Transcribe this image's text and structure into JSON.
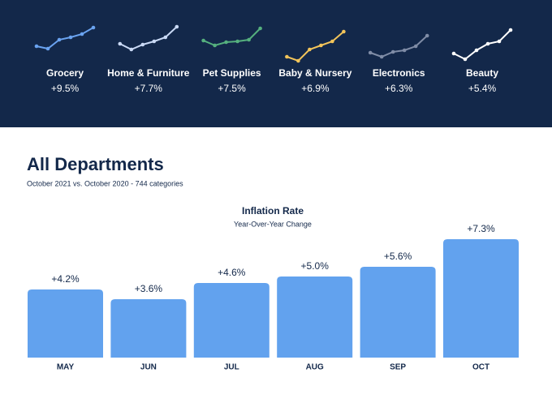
{
  "page": {
    "title": "All Departments",
    "subtitle": "October 2021 vs. October 2020 - 744 categories"
  },
  "chart_data": [
    {
      "type": "sparkline",
      "title": "Grocery",
      "subtitle": "+9.5%",
      "color": "#6aa3f0",
      "values": [
        23,
        20,
        31,
        34,
        38,
        46
      ],
      "ylim": [
        0,
        50
      ]
    },
    {
      "type": "sparkline",
      "title": "Home & Furniture",
      "subtitle": "+7.7%",
      "color": "#c9d9f5",
      "values": [
        26,
        19,
        25,
        29,
        34,
        47
      ],
      "ylim": [
        0,
        50
      ]
    },
    {
      "type": "sparkline",
      "title": "Pet Supplies",
      "subtitle": "+7.5%",
      "color": "#55b07e",
      "values": [
        30,
        24,
        28,
        29,
        31,
        45
      ],
      "ylim": [
        0,
        50
      ]
    },
    {
      "type": "sparkline",
      "title": "Baby & Nursery",
      "subtitle": "+6.9%",
      "color": "#f2c45a",
      "values": [
        10,
        5,
        19,
        24,
        29,
        41
      ],
      "ylim": [
        0,
        50
      ]
    },
    {
      "type": "sparkline",
      "title": "Electronics",
      "subtitle": "+6.3%",
      "color": "#7f8ca6",
      "values": [
        15,
        10,
        16,
        18,
        23,
        36
      ],
      "ylim": [
        0,
        50
      ]
    },
    {
      "type": "sparkline",
      "title": "Beauty",
      "subtitle": "+5.4%",
      "color": "#ffffff",
      "values": [
        14,
        7,
        18,
        26,
        29,
        43
      ],
      "ylim": [
        0,
        50
      ]
    },
    {
      "type": "bar",
      "title": "Inflation Rate",
      "subtitle": "Year-Over-Year Change",
      "color": "#62a2ee",
      "categories": [
        "MAY",
        "JUN",
        "JUL",
        "AUG",
        "SEP",
        "OCT"
      ],
      "values": [
        4.2,
        3.6,
        4.6,
        5.0,
        5.6,
        7.3
      ],
      "value_labels": [
        "+4.2%",
        "+3.6%",
        "+4.6%",
        "+5.0%",
        "+5.6%",
        "+7.3%"
      ],
      "ylim": [
        0,
        8
      ]
    }
  ]
}
